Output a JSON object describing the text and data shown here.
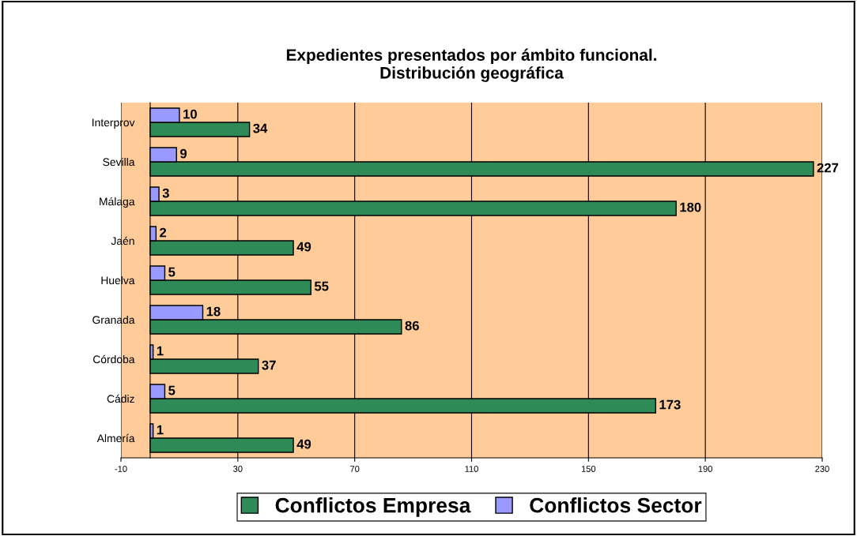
{
  "chart_data": {
    "type": "bar",
    "orientation": "horizontal",
    "title": "Expedientes presentados por ámbito funcional.\nDistribución geográfica",
    "categories": [
      "Interprov",
      "Sevilla",
      "Málaga",
      "Jaén",
      "Huelva",
      "Granada",
      "Córdoba",
      "Cádiz",
      "Almería"
    ],
    "series": [
      {
        "name": "Conflictos Empresa",
        "color": "#2e8b57",
        "values": [
          34,
          227,
          180,
          49,
          55,
          86,
          37,
          173,
          49
        ]
      },
      {
        "name": "Conflictos Sector",
        "color": "#9999ff",
        "values": [
          10,
          9,
          3,
          2,
          5,
          18,
          1,
          5,
          1
        ]
      }
    ],
    "xlim": [
      -10,
      230
    ],
    "xticks": [
      -10,
      30,
      70,
      110,
      150,
      190,
      230
    ],
    "grid": "x",
    "legend": "bottom",
    "data_labels": true
  }
}
